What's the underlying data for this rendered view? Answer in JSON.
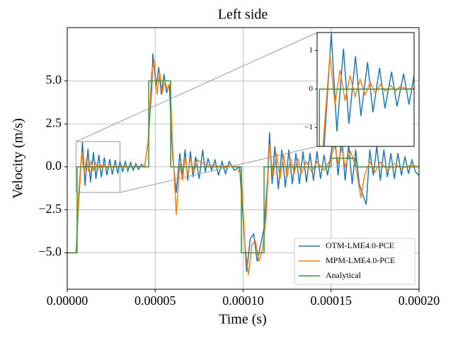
{
  "chart_data": {
    "type": "line",
    "title": "Left side",
    "x_label": "Time (s)",
    "y_label": "Velocity (m/s)",
    "xlim": [
      0,
      0.0002
    ],
    "ylim": [
      -7.12,
      8.1
    ],
    "xticks": [
      {
        "value": 0,
        "label": "0.00000"
      },
      {
        "value": 5e-05,
        "label": "0.00005"
      },
      {
        "value": 0.0001,
        "label": "0.00010"
      },
      {
        "value": 0.00015,
        "label": "0.00015"
      },
      {
        "value": 0.0002,
        "label": "0.00020"
      }
    ],
    "yticks": [
      {
        "value": -5,
        "label": "−5.0"
      },
      {
        "value": -2.5,
        "label": "−2.5"
      },
      {
        "value": 0,
        "label": "0.0"
      },
      {
        "value": 2.5,
        "label": "2.5"
      },
      {
        "value": 5,
        "label": "5.0"
      }
    ],
    "grid": true,
    "legend": "lower right",
    "series": [
      {
        "name": "OTM-LME4.0-PCE",
        "color": "#1f77b4",
        "x": [
          0,
          5e-06,
          6.5e-06,
          8.65e-06,
          1.01e-05,
          1.18e-05,
          1.32e-05,
          1.49e-05,
          1.63e-05,
          1.8e-05,
          1.94e-05,
          2.11e-05,
          2.25e-05,
          2.42e-05,
          2.56e-05,
          2.73e-05,
          2.87e-05,
          3e-05,
          3.15e-05,
          3.3e-05,
          3.45e-05,
          3.6e-05,
          3.75e-05,
          3.9e-05,
          4.05e-05,
          4.2e-05,
          4.4e-05,
          4.6e-05,
          4.8e-05,
          4.87e-05,
          5.05e-05,
          5.2e-05,
          5.35e-05,
          5.5e-05,
          5.65e-05,
          5.8e-05,
          6e-05,
          6.2e-05,
          6.4e-05,
          6.55e-05,
          6.7e-05,
          6.85e-05,
          7e-05,
          7.15e-05,
          7.3e-05,
          7.5e-05,
          7.7e-05,
          7.85e-05,
          8e-05,
          8.2e-05,
          8.4e-05,
          8.6e-05,
          8.8e-05,
          9e-05,
          9.2e-05,
          9.5e-05,
          9.8e-05,
          0.0001,
          0.000102,
          0.000104,
          0.000106,
          0.000108,
          0.00011,
          0.000112,
          0.000114,
          0.000115,
          0.0001165,
          0.000118,
          0.00012,
          0.000122,
          0.000124,
          0.000126,
          0.000128,
          0.00013,
          0.000132,
          0.000134,
          0.000136,
          0.000138,
          0.00014,
          0.000142,
          0.000144,
          0.000146,
          0.000148,
          0.00015,
          0.000152,
          0.000154,
          0.000156,
          0.000158,
          0.00016,
          0.000162,
          0.000164,
          0.000166,
          0.00017,
          0.000172,
          0.000174,
          0.000176,
          0.000178,
          0.00018,
          0.000182,
          0.000184,
          0.000186,
          0.000188,
          0.00019,
          0.000192,
          0.000194,
          0.000196,
          0.000198,
          0.0002
        ],
        "values": [
          -5,
          -5,
          -2,
          1.45,
          -1.1,
          1.05,
          -0.9,
          0.85,
          -0.7,
          0.7,
          -0.6,
          0.55,
          -0.5,
          0.45,
          -0.45,
          0.4,
          -0.4,
          0.35,
          -0.3,
          0.3,
          -0.25,
          0.25,
          -0.2,
          0.2,
          -0.15,
          0.15,
          0,
          1.5,
          4.5,
          6.6,
          4.6,
          5.8,
          4.2,
          5.4,
          4.3,
          4.8,
          0.5,
          -1.5,
          0.8,
          -0.5,
          1.0,
          -0.8,
          0.9,
          -0.6,
          0.6,
          -0.7,
          1.0,
          -0.3,
          0.5,
          -0.2,
          0.4,
          -0.5,
          0.3,
          -0.4,
          0.3,
          -0.2,
          0,
          -3,
          -6.1,
          -4.2,
          -3.9,
          -5.5,
          -4.5,
          -3.5,
          -0.5,
          2.0,
          -1.0,
          1.2,
          -1.3,
          1.0,
          -1.2,
          1.0,
          -1.0,
          0.8,
          -1.0,
          0.9,
          -0.9,
          0.8,
          -0.8,
          0.9,
          -0.7,
          0.7,
          -0.5,
          0.8,
          1.9,
          -0.5,
          1.8,
          -0.8,
          1.3,
          -1.0,
          1.0,
          -1.0,
          -2.2,
          1.0,
          -0.5,
          1.2,
          -0.8,
          1.0,
          -0.6,
          0.8,
          -0.7,
          0.8,
          -0.5,
          0.6,
          -0.4,
          0.4,
          -0.3,
          -0.5
        ]
      },
      {
        "name": "MPM-LME4.0-PCE",
        "color": "#ff7f0e",
        "x": [
          0,
          5e-06,
          6.5e-06,
          8.3e-06,
          9.6e-06,
          1.09e-05,
          1.22e-05,
          1.35e-05,
          1.48e-05,
          1.61e-05,
          1.74e-05,
          1.87e-05,
          2e-05,
          2.13e-05,
          2.26e-05,
          2.39e-05,
          2.52e-05,
          2.65e-05,
          2.8e-05,
          3.2e-05,
          3.6e-05,
          4e-05,
          4.4e-05,
          4.6e-05,
          4.8e-05,
          4.95e-05,
          5.1e-05,
          5.25e-05,
          5.4e-05,
          5.55e-05,
          5.7e-05,
          5.85e-05,
          6e-05,
          6.2e-05,
          6.4e-05,
          6.55e-05,
          6.7e-05,
          6.85e-05,
          7e-05,
          7.2e-05,
          7.4e-05,
          7.7e-05,
          8e-05,
          8.4e-05,
          8.8e-05,
          9.2e-05,
          9.6e-05,
          9.9e-05,
          0.000101,
          0.000103,
          0.000105,
          0.000107,
          0.000109,
          0.000111,
          0.000113,
          0.000115,
          0.000117,
          0.000119,
          0.000121,
          0.000123,
          0.000125,
          0.000127,
          0.000129,
          0.000131,
          0.000133,
          0.000136,
          0.000139,
          0.000142,
          0.000146,
          0.00015,
          0.000152,
          0.000154,
          0.000156,
          0.000158,
          0.000161,
          0.000164,
          0.000167,
          0.000169,
          0.000172,
          0.000175,
          0.000178,
          0.000182,
          0.000186,
          0.00019,
          0.000195,
          0.0002
        ],
        "values": [
          -5,
          -5,
          -1.5,
          0.9,
          -0.4,
          0.5,
          -0.3,
          0.35,
          -0.2,
          0.25,
          -0.15,
          0.18,
          -0.1,
          0.12,
          -0.05,
          0.1,
          -0.05,
          0.08,
          0,
          0.05,
          0,
          0.03,
          0,
          1.5,
          5.5,
          6.2,
          4.2,
          5.5,
          4.3,
          5.0,
          4.5,
          4.8,
          1.0,
          -2.8,
          0.2,
          -0.8,
          0.6,
          -0.5,
          0.5,
          -0.3,
          0.4,
          0.2,
          0.1,
          0.1,
          0,
          0.1,
          0,
          -0.5,
          -4.5,
          -6.3,
          -4.5,
          -4.3,
          -5.5,
          -4.8,
          -3.0,
          1.3,
          -0.6,
          0.8,
          -0.7,
          0.7,
          -0.6,
          0.5,
          -0.4,
          0.5,
          -0.4,
          0.3,
          -0.3,
          0.3,
          -0.2,
          0.5,
          1.3,
          0.2,
          1.1,
          0,
          0.9,
          0,
          -1.8,
          -0.5,
          0.3,
          -0.3,
          0.3,
          -0.2,
          0.2,
          -0.1,
          0.1,
          0
        ]
      },
      {
        "name": "Analytical",
        "color": "#2ca02c",
        "x": [
          0,
          5.6e-06,
          5.6e-06,
          4.63e-05,
          4.63e-05,
          5.88e-05,
          5.88e-05,
          9.9e-05,
          9.9e-05,
          0.0001119,
          0.0001119,
          0.00015,
          0.00015,
          0.000164,
          0.000164,
          0.0002
        ],
        "values": [
          -5,
          -5,
          0,
          0,
          5,
          5,
          0,
          0,
          -5,
          -5,
          0,
          0,
          0.5,
          0.5,
          0,
          0
        ]
      }
    ],
    "inset": {
      "xlim": [
        5e-06,
        3e-05
      ],
      "ylim": [
        -1.49,
        1.47
      ],
      "yticks": [
        {
          "value": -1,
          "label": "−1"
        },
        0,
        1
      ]
    }
  }
}
